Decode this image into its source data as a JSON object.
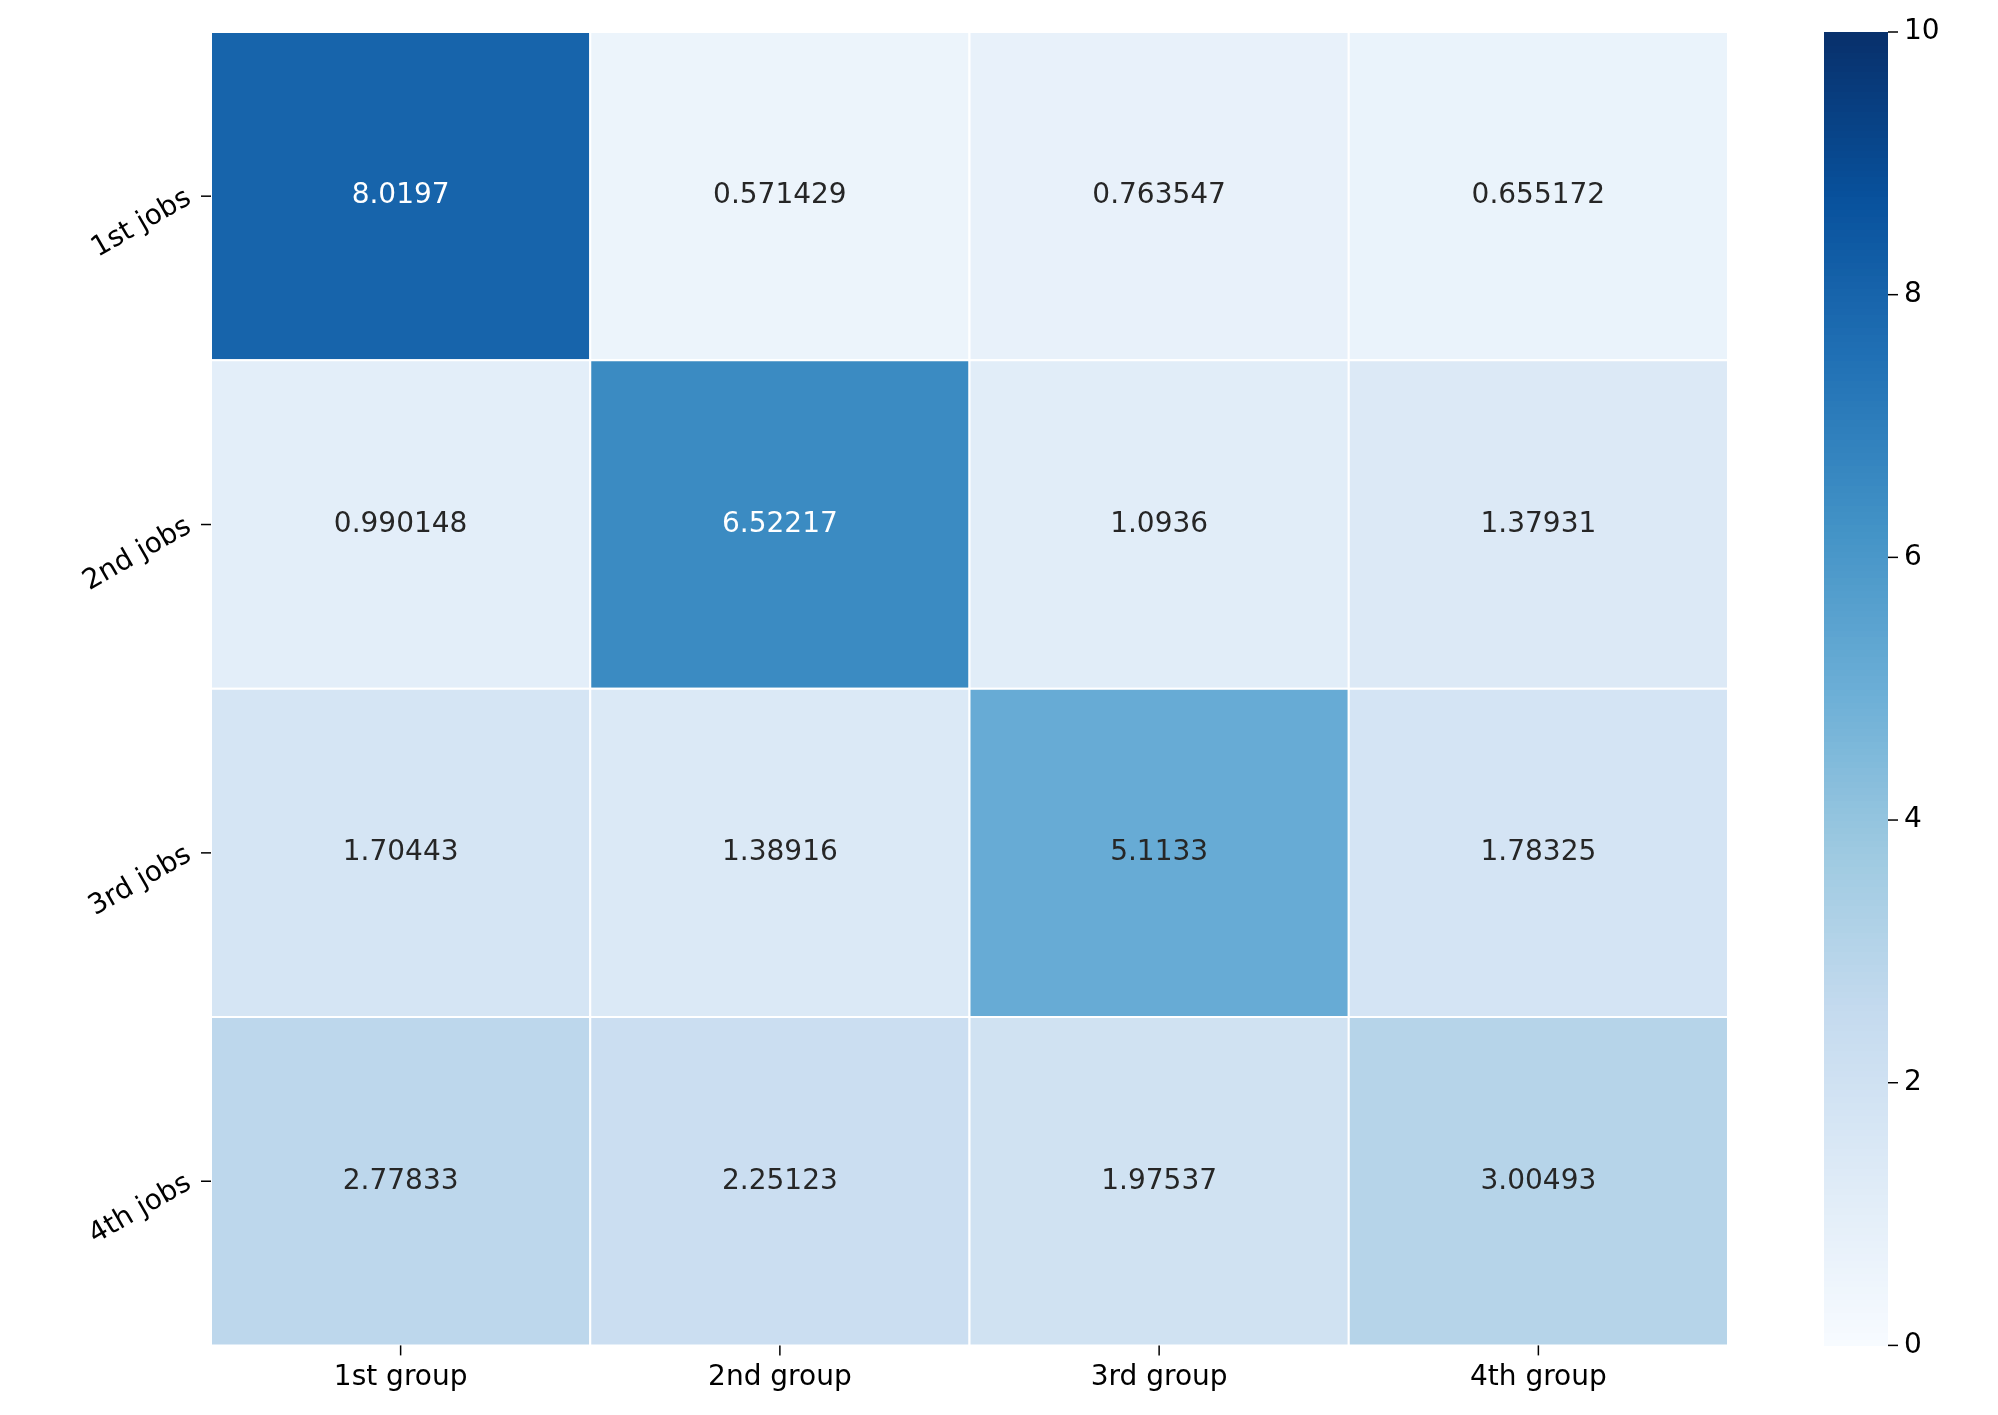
{
  "chart_data": {
    "type": "heatmap",
    "categories": [
      "1st group",
      "2nd group",
      "3rd group",
      "4th group"
    ],
    "y_categories": [
      "1st jobs",
      "2nd jobs",
      "3rd jobs",
      "4th jobs"
    ],
    "cells": [
      [
        8.0197,
        0.571429,
        0.763547,
        0.655172
      ],
      [
        0.990148,
        6.52217,
        1.0936,
        1.37931
      ],
      [
        1.70443,
        1.38916,
        5.1133,
        1.78325
      ],
      [
        2.77833,
        2.25123,
        1.97537,
        3.00493
      ]
    ],
    "clim": [
      0,
      10
    ],
    "cticks": [
      0,
      2,
      4,
      6,
      8,
      10
    ],
    "data_labels": true
  }
}
